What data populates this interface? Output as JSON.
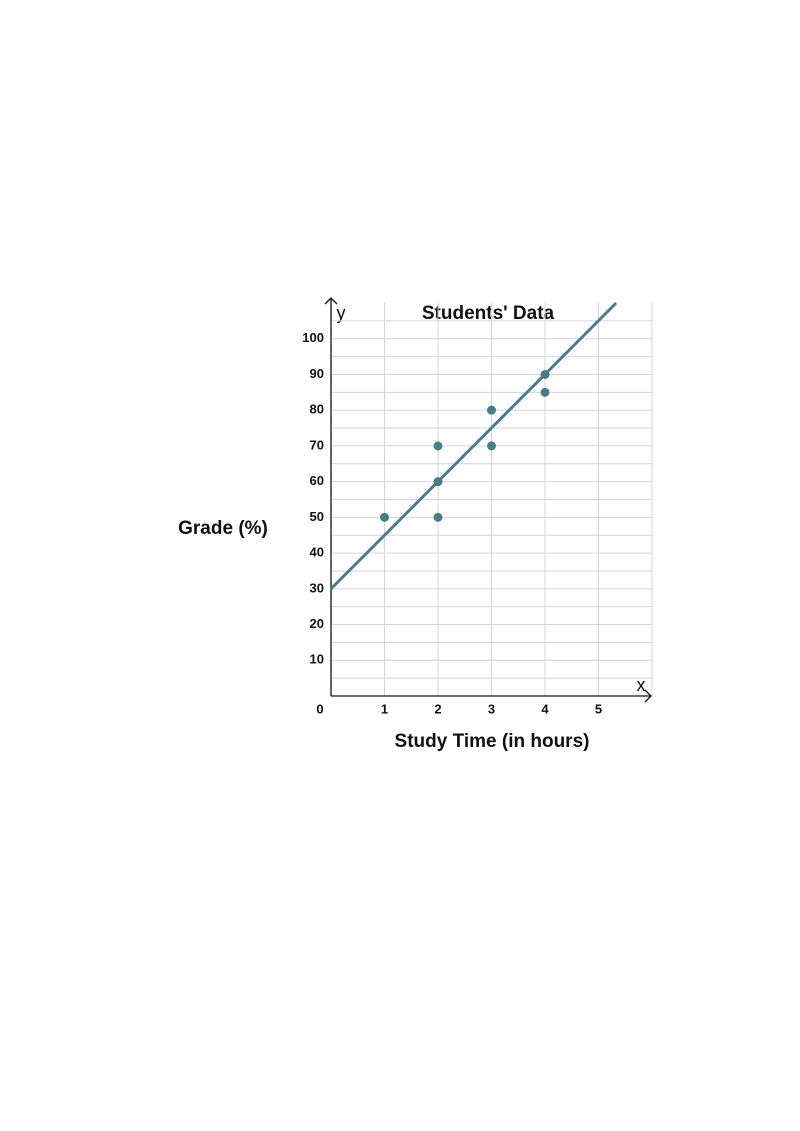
{
  "chart_data": {
    "type": "scatter",
    "title": "Students' Data",
    "x_label": "Study Time (in hours)",
    "y_label": "Grade (%)",
    "x_axis_letter": "x",
    "y_axis_letter": "y",
    "x": [
      1,
      2,
      2,
      2,
      3,
      3,
      4,
      4
    ],
    "values": [
      50,
      70,
      60,
      50,
      80,
      70,
      90,
      85
    ],
    "color": "#4a7b88",
    "trend_line": {
      "x": [
        0,
        5.33
      ],
      "values": [
        30,
        110
      ],
      "color": "#4b7d8a"
    },
    "xlim": [
      0,
      6
    ],
    "ylim": [
      0,
      110
    ],
    "xticks": [
      0,
      1,
      2,
      3,
      4,
      5
    ],
    "yticks": [
      10,
      20,
      30,
      40,
      50,
      60,
      70,
      80,
      90,
      100
    ],
    "minor_yticks": [
      5,
      15,
      25,
      35,
      45,
      55,
      65,
      75,
      85,
      95,
      105
    ],
    "grid": true
  }
}
